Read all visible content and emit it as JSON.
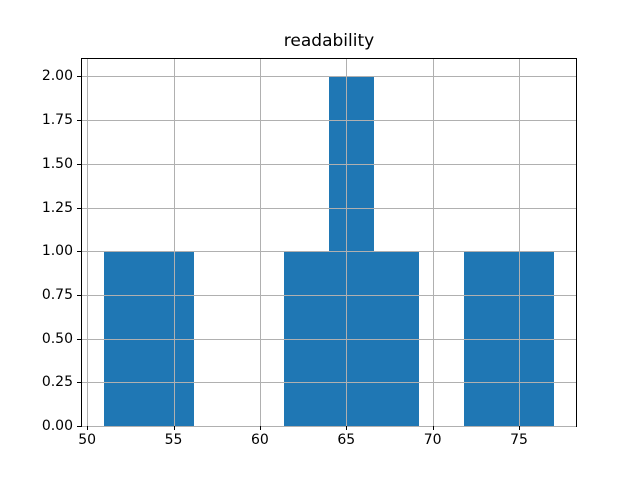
{
  "figure": {
    "title": "readability",
    "colors": {
      "background": "#ffffff",
      "bar": "#1f77b4",
      "grid": "#b0b0b0",
      "spine": "#000000",
      "text": "#000000"
    }
  },
  "chart_data": {
    "type": "bar",
    "subtype": "histogram",
    "title": "readability",
    "xlabel": "",
    "ylabel": "",
    "bin_edges": [
      51.0,
      53.6,
      56.2,
      58.8,
      61.4,
      64.0,
      66.6,
      69.2,
      71.8,
      74.4,
      77.0
    ],
    "counts": [
      1,
      1,
      0,
      0,
      1,
      2,
      1,
      0,
      1,
      1
    ],
    "xlim": [
      49.7,
      78.3
    ],
    "ylim": [
      0,
      2.1
    ],
    "x_ticks": [
      50,
      55,
      60,
      65,
      70,
      75
    ],
    "x_tick_labels": [
      "50",
      "55",
      "60",
      "65",
      "70",
      "75"
    ],
    "y_ticks": [
      0.0,
      0.25,
      0.5,
      0.75,
      1.0,
      1.25,
      1.5,
      1.75,
      2.0
    ],
    "y_tick_labels": [
      "0.00",
      "0.25",
      "0.50",
      "0.75",
      "1.00",
      "1.25",
      "1.50",
      "1.75",
      "2.00"
    ],
    "grid": true,
    "grid_above_bars": true,
    "legend": false
  }
}
